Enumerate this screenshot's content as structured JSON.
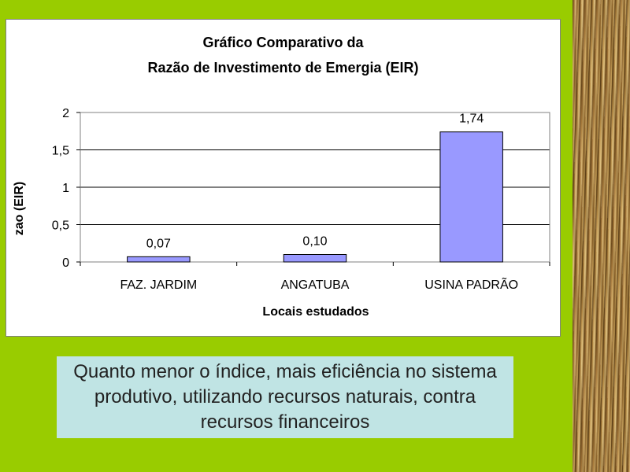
{
  "colors": {
    "slide_background": "#99cc00",
    "bar_fill": "#9999ff",
    "caption_background": "#c0e4e4"
  },
  "chart_data": {
    "type": "bar",
    "title_line1": "Gráfico Comparativo da",
    "title_line2": "Razão de Investimento de Emergia (EIR)",
    "xlabel": "Locais estudados",
    "ylabel_visible": "zao (EIR)",
    "categories": [
      "FAZ. JARDIM",
      "ANGATUBA",
      "USINA PADRÃO"
    ],
    "values": [
      0.07,
      0.1,
      1.74
    ],
    "data_labels": [
      "0,07",
      "0,10",
      "1,74"
    ],
    "ylim": [
      0,
      2
    ],
    "yticks": [
      0,
      0.5,
      1,
      1.5,
      2
    ],
    "ytick_labels": [
      "0",
      "0,5",
      "1",
      "1,5",
      "2"
    ],
    "grid": true
  },
  "caption": {
    "text": "Quanto menor o índice, mais eficiência no sistema produtivo, utilizando recursos naturais, contra recursos financeiros"
  }
}
